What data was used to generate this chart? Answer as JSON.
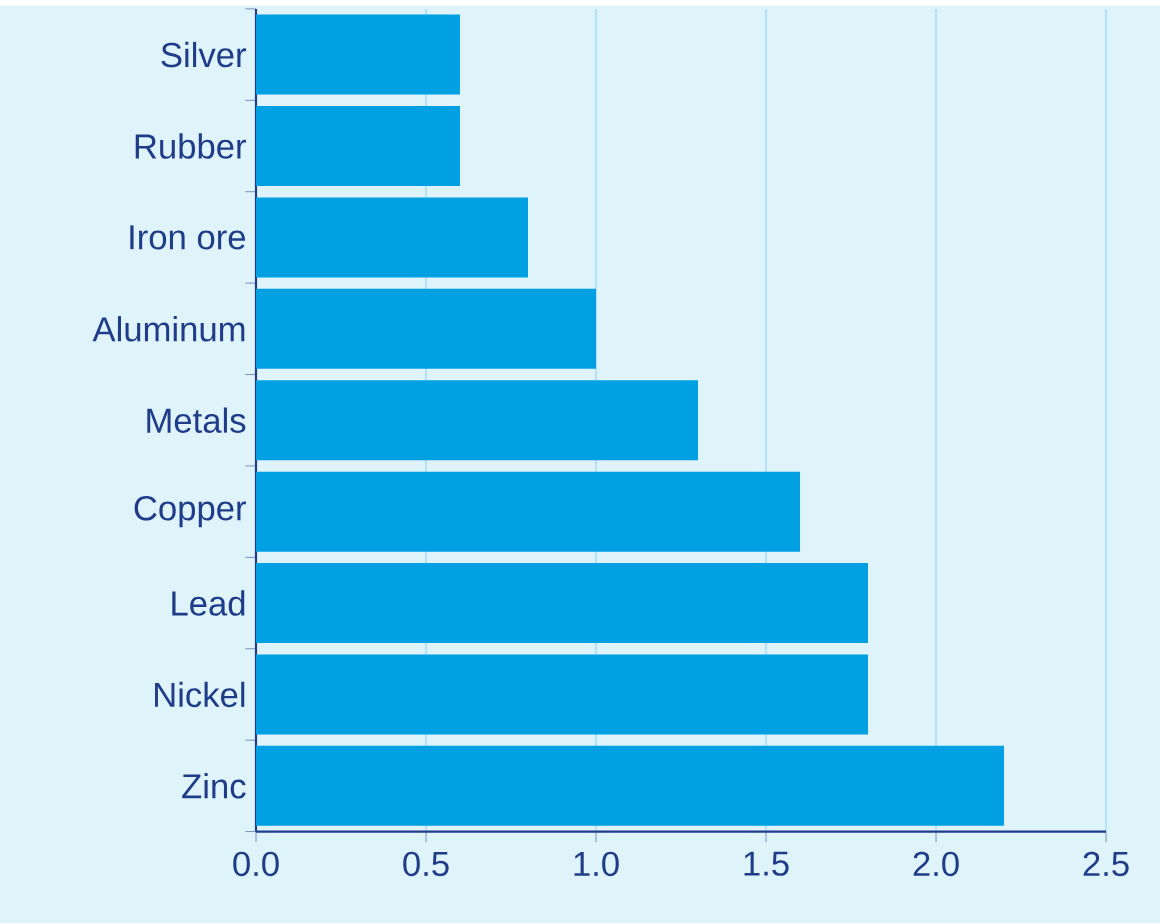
{
  "chart_data": {
    "type": "bar",
    "orientation": "horizontal",
    "categories": [
      "Silver",
      "Rubber",
      "Iron ore",
      "Aluminum",
      "Metals",
      "Copper",
      "Lead",
      "Nickel",
      "Zinc"
    ],
    "values": [
      0.6,
      0.6,
      0.8,
      1.0,
      1.3,
      1.6,
      1.8,
      1.8,
      2.2
    ],
    "color": "#00a0e3",
    "xlim": [
      0,
      2.5
    ],
    "xticks": [
      {
        "value": 0,
        "label": "0.0"
      },
      0.5,
      {
        "value": 1,
        "label": "1.0"
      },
      1.5,
      {
        "value": 2,
        "label": "2.0"
      },
      2.5
    ],
    "grid": "x"
  }
}
